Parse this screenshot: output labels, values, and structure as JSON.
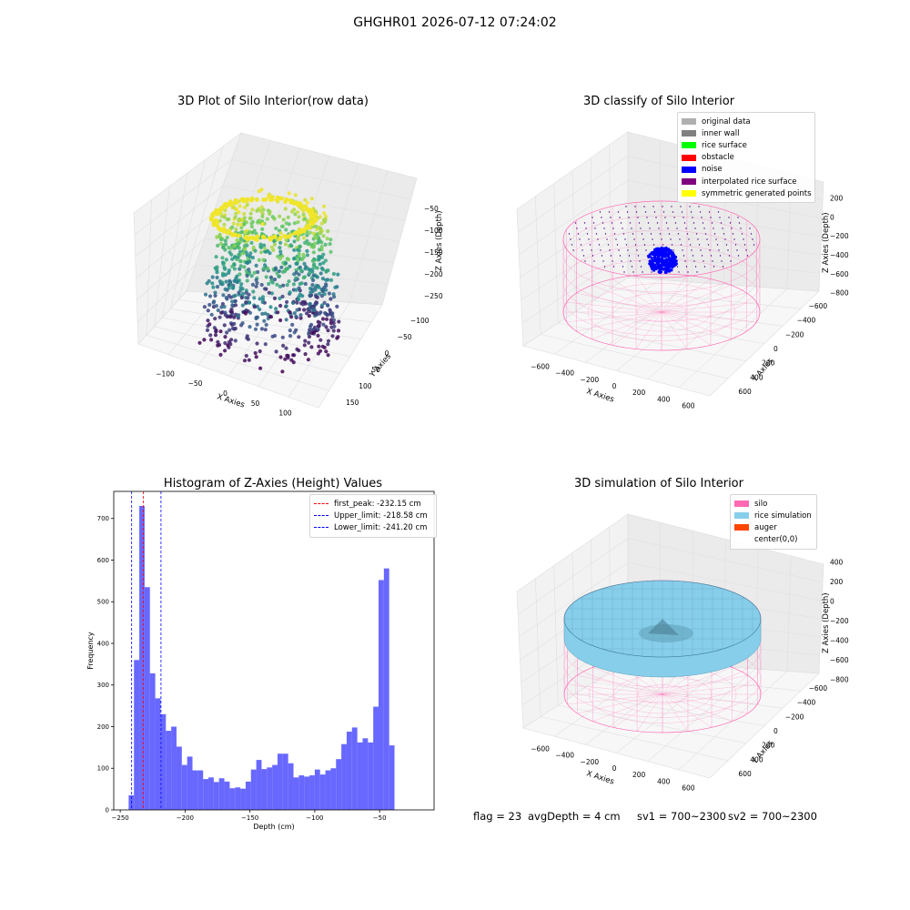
{
  "suptitle": "GHGHR01 2026-07-12 07:24:02",
  "panels": {
    "raw": {
      "title": "3D Plot of Silo Interior(row data)",
      "xlabel": "X Axies",
      "ylabel": "Y Axies",
      "zlabel": "Z Axies (Depth)",
      "xticks": [
        "−100",
        "−50",
        "0",
        "50",
        "100"
      ],
      "yticks": [
        "150",
        "100",
        "50",
        "0",
        "−50",
        "−100"
      ],
      "zticks": [
        "−50",
        "−100",
        "−150",
        "−200",
        "−250"
      ]
    },
    "classify": {
      "title": "3D classify of Silo Interior",
      "xlabel": "X Axies",
      "ylabel": "Y Axies",
      "zlabel": "Z Axies (Depth)",
      "xticks": [
        "−600",
        "−400",
        "−200",
        "0",
        "200",
        "400",
        "600"
      ],
      "yticks": [
        "600",
        "400",
        "200",
        "0",
        "−200",
        "−400",
        "−600"
      ],
      "zticks": [
        "200",
        "0",
        "−200",
        "−400",
        "−600",
        "−800"
      ],
      "legend": [
        {
          "label": "original data",
          "color": "#b0b0b0"
        },
        {
          "label": "inner wall",
          "color": "#808080"
        },
        {
          "label": "rice surface",
          "color": "#00ff00"
        },
        {
          "label": "obstacle",
          "color": "#ff0000"
        },
        {
          "label": "noise",
          "color": "#0000ff"
        },
        {
          "label": "interpolated rice surface",
          "color": "#800080"
        },
        {
          "label": "symmetric generated points",
          "color": "#ffff00"
        }
      ]
    },
    "simulation": {
      "title": "3D simulation of Silo Interior",
      "xlabel": "X Axies",
      "ylabel": "Y Axies",
      "zlabel": "Z Axies (Depth)",
      "xticks": [
        "−600",
        "−400",
        "−200",
        "0",
        "200",
        "400",
        "600"
      ],
      "yticks": [
        "600",
        "400",
        "200",
        "0",
        "−200",
        "−400",
        "−600"
      ],
      "zticks": [
        "400",
        "200",
        "0",
        "−200",
        "−400",
        "−600",
        "−800"
      ],
      "legend": [
        {
          "label": "silo",
          "color": "#ff69b4"
        },
        {
          "label": "rice simulation",
          "color": "#87ceeb"
        },
        {
          "label": "auger",
          "color": "#ff4500"
        },
        {
          "label": "center(0,0)",
          "color": ""
        }
      ]
    }
  },
  "chart_data": {
    "type": "bar",
    "title": "Histogram of Z-Axies (Height) Values",
    "xlabel": "Depth (cm)",
    "ylabel": "Frequency",
    "xlim": [
      -255,
      -8
    ],
    "ylim": [
      0,
      765
    ],
    "xticks": [
      -250,
      -200,
      -150,
      -100,
      -50
    ],
    "xtick_labels": [
      "−250",
      "−200",
      "−150",
      "−100",
      "−50"
    ],
    "yticks": [
      0,
      100,
      200,
      300,
      400,
      500,
      600,
      700
    ],
    "color": "#4d4dff",
    "bins": [
      {
        "x0": -243.5,
        "x1": -239.4,
        "count": 35
      },
      {
        "x0": -239.4,
        "x1": -235.3,
        "count": 360
      },
      {
        "x0": -235.3,
        "x1": -231.2,
        "count": 730
      },
      {
        "x0": -231.2,
        "x1": -227.1,
        "count": 535
      },
      {
        "x0": -227.1,
        "x1": -223.0,
        "count": 328
      },
      {
        "x0": -223.0,
        "x1": -218.9,
        "count": 268
      },
      {
        "x0": -218.9,
        "x1": -214.8,
        "count": 230
      },
      {
        "x0": -214.8,
        "x1": -210.7,
        "count": 190
      },
      {
        "x0": -210.7,
        "x1": -206.6,
        "count": 200
      },
      {
        "x0": -206.6,
        "x1": -202.5,
        "count": 152
      },
      {
        "x0": -202.5,
        "x1": -198.4,
        "count": 108
      },
      {
        "x0": -198.4,
        "x1": -194.3,
        "count": 128
      },
      {
        "x0": -194.3,
        "x1": -190.2,
        "count": 95
      },
      {
        "x0": -190.2,
        "x1": -186.1,
        "count": 95
      },
      {
        "x0": -186.1,
        "x1": -182.0,
        "count": 74
      },
      {
        "x0": -182.0,
        "x1": -177.9,
        "count": 78
      },
      {
        "x0": -177.9,
        "x1": -173.8,
        "count": 67
      },
      {
        "x0": -173.8,
        "x1": -169.7,
        "count": 76
      },
      {
        "x0": -169.7,
        "x1": -165.6,
        "count": 68
      },
      {
        "x0": -165.6,
        "x1": -161.5,
        "count": 52
      },
      {
        "x0": -161.5,
        "x1": -157.4,
        "count": 54
      },
      {
        "x0": -157.4,
        "x1": -153.3,
        "count": 51
      },
      {
        "x0": -153.3,
        "x1": -149.2,
        "count": 68
      },
      {
        "x0": -149.2,
        "x1": -145.1,
        "count": 97
      },
      {
        "x0": -145.1,
        "x1": -141.0,
        "count": 120
      },
      {
        "x0": -141.0,
        "x1": -136.9,
        "count": 98
      },
      {
        "x0": -136.9,
        "x1": -132.8,
        "count": 102
      },
      {
        "x0": -132.8,
        "x1": -128.7,
        "count": 108
      },
      {
        "x0": -128.7,
        "x1": -124.6,
        "count": 135
      },
      {
        "x0": -124.6,
        "x1": -120.5,
        "count": 135
      },
      {
        "x0": -120.5,
        "x1": -116.4,
        "count": 112
      },
      {
        "x0": -116.4,
        "x1": -112.3,
        "count": 78
      },
      {
        "x0": -112.3,
        "x1": -108.2,
        "count": 83
      },
      {
        "x0": -108.2,
        "x1": -104.1,
        "count": 80
      },
      {
        "x0": -104.1,
        "x1": -100.0,
        "count": 83
      },
      {
        "x0": -100.0,
        "x1": -95.9,
        "count": 97
      },
      {
        "x0": -95.9,
        "x1": -91.8,
        "count": 85
      },
      {
        "x0": -91.8,
        "x1": -87.7,
        "count": 95
      },
      {
        "x0": -87.7,
        "x1": -83.6,
        "count": 100
      },
      {
        "x0": -83.6,
        "x1": -79.5,
        "count": 122
      },
      {
        "x0": -79.5,
        "x1": -75.4,
        "count": 158
      },
      {
        "x0": -75.4,
        "x1": -71.3,
        "count": 188
      },
      {
        "x0": -71.3,
        "x1": -67.2,
        "count": 198
      },
      {
        "x0": -67.2,
        "x1": -63.1,
        "count": 162
      },
      {
        "x0": -63.1,
        "x1": -59.0,
        "count": 172
      },
      {
        "x0": -59.0,
        "x1": -54.9,
        "count": 162
      },
      {
        "x0": -54.9,
        "x1": -50.8,
        "count": 248
      },
      {
        "x0": -50.8,
        "x1": -46.7,
        "count": 552
      },
      {
        "x0": -46.7,
        "x1": -42.6,
        "count": 580
      },
      {
        "x0": -42.6,
        "x1": -38.5,
        "count": 155
      }
    ],
    "vlines": [
      {
        "name": "first_peak: -232.15 cm",
        "x": -232.15,
        "color": "#ff0000"
      },
      {
        "name": "Upper_limit: -218.58 cm",
        "x": -218.58,
        "color": "#0000ff"
      },
      {
        "name": "Lower_limit: -241.20 cm",
        "x": -241.2,
        "color": "#0000ff"
      }
    ],
    "legend_position": "upper right"
  },
  "footer": {
    "flag": "flag = 23",
    "avg": "avgDepth = 4 cm",
    "sv1": "sv1 = 700~2300",
    "sv2": "sv2 = 700~2300"
  }
}
